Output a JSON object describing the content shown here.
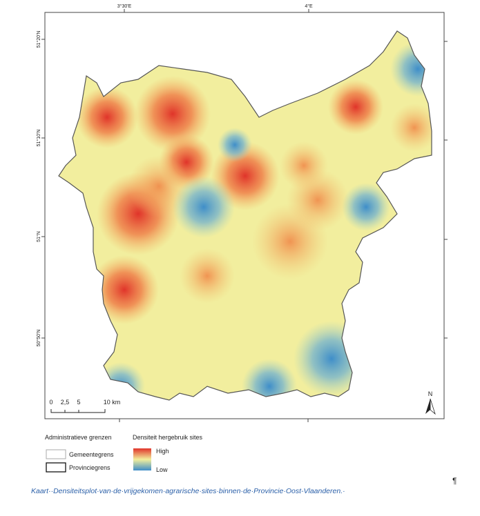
{
  "map": {
    "top_labels": [
      "3°30'E",
      "4°E"
    ],
    "left_labels": [
      "51°20'N",
      "51°10'N",
      "51°N",
      "50°50'N"
    ],
    "scale_labels": [
      "0",
      "2,5",
      "5",
      "10 km"
    ],
    "north": "N"
  },
  "legend": {
    "boundaries_title": "Administratieve grenzen",
    "municipal": "Gemeentegrens",
    "provincial": "Provinciegrens",
    "density_title": "Densiteit hergebruik sites",
    "high": "High",
    "low": "Low"
  },
  "caption": "Kaart··Densiteitsplot·van·de·vrijgekomen·agrarische·sites·binnen·de·Provincie·Oost-Vlaanderen.·",
  "pilcrow": "¶"
}
